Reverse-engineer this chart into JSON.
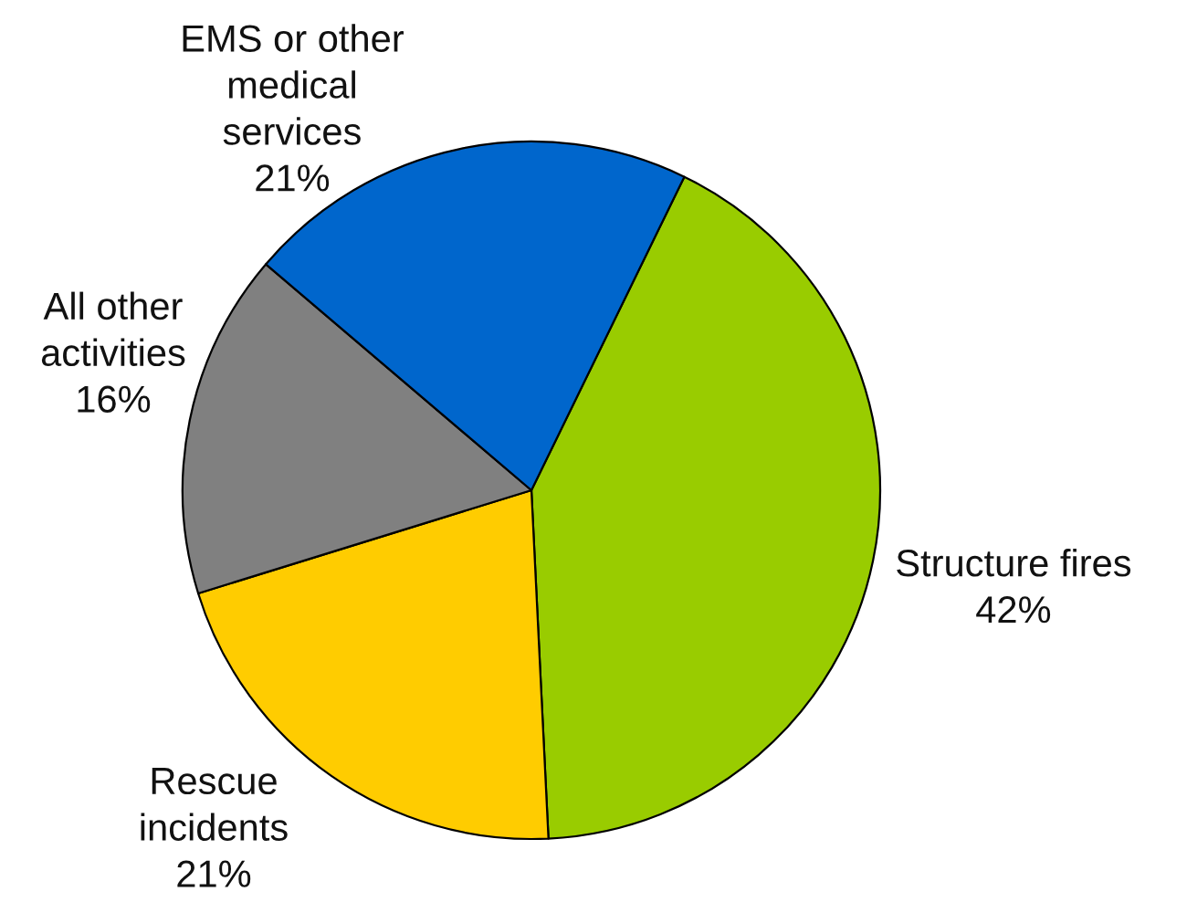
{
  "chart_data": {
    "type": "pie",
    "categories": [
      "Structure fires",
      "Rescue\nincidents",
      "All other\nactivities",
      "EMS or other\nmedical\nservices"
    ],
    "values": [
      42,
      21,
      16,
      21
    ],
    "colors": [
      "#99cc00",
      "#ffcc00",
      "#808080",
      "#0066cc"
    ],
    "value_labels": [
      "42%",
      "21%",
      "16%",
      "21%"
    ]
  }
}
